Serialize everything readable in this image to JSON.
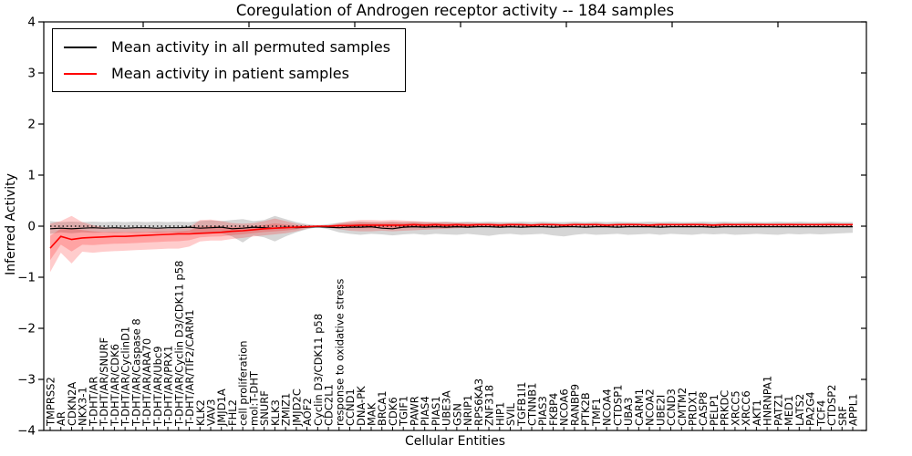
{
  "figure": {
    "title": "Coregulation of Androgen receptor activity -- 184 samples",
    "xlabel": "Cellular Entities",
    "ylabel": "Inferred Activity",
    "legend": [
      {
        "label": "Mean activity in all permuted samples",
        "color": "#000000"
      },
      {
        "label": "Mean activity in patient samples",
        "color": "#ff0000"
      }
    ]
  },
  "chart_data": {
    "type": "line",
    "title": "Coregulation of Androgen receptor activity -- 184 samples",
    "xlabel": "Cellular Entities",
    "ylabel": "Inferred Activity",
    "ylim": [
      -4,
      4
    ],
    "y_tick_values": [
      4,
      3,
      2,
      1,
      0,
      -1,
      -2,
      -3,
      -4
    ],
    "y_tick_labels": [
      "4",
      "3",
      "2",
      "1",
      "0",
      "−1",
      "−2",
      "−3",
      "−4"
    ],
    "grid": false,
    "zero_line": true,
    "legend_position": "upper left",
    "categories": [
      "TMPRSS2",
      "AR",
      "CDKN2A",
      "NKX3-1",
      "T-DHT/AR",
      "T-DHT/AR/SNURF",
      "T-DHT/AR/CDK6",
      "T-DHT/AR/CyclinD1",
      "T-DHT/AR/Caspase 8",
      "T-DHT/AR/ARA70",
      "T-DHT/AR/Ubc9",
      "T-DHT/AR/PRX1",
      "T-DHT/AR/Cyclin D3/CDK11 p58",
      "T-DHT/AR/TIF2/CARM1",
      "KLK2",
      "VAV3",
      "JMJD1A",
      "FHL2",
      "cell proliferation",
      "mol:T-DHT",
      "SNURF",
      "KLK3",
      "ZMIZ1",
      "JMJD2C",
      "AOF2",
      "Cyclin D3/CDK11 p58",
      "CDC2L1",
      "response to oxidative stress",
      "CCND1",
      "DNA-PK",
      "MAK",
      "BRCA1",
      "CDK6",
      "TGIF1",
      "PAWR",
      "PIAS4",
      "PIAS1",
      "UBE3A",
      "GSN",
      "NRIP1",
      "RPS6KA3",
      "ZNF318",
      "HIP1",
      "SVIL",
      "TGFB1I1",
      "CTNNB1",
      "PIAS3",
      "FKBP4",
      "NCOA6",
      "RANBP9",
      "PTK2B",
      "TMF1",
      "NCOA4",
      "CTDSP1",
      "UBA3",
      "CARM1",
      "NCOA2",
      "UBE2I",
      "CCND3",
      "CMTM2",
      "PRDX1",
      "CASP8",
      "PELP1",
      "PRKDC",
      "XRCC5",
      "XRCC6",
      "AKT1",
      "HNRNPA1",
      "PATZ1",
      "MED1",
      "LATS2",
      "PA2G4",
      "TCF4",
      "CTDSP2",
      "SRF",
      "APPL1"
    ],
    "series": [
      {
        "name": "Mean activity in all permuted samples",
        "color": "#000000",
        "values": [
          -0.05,
          -0.04,
          -0.05,
          -0.04,
          -0.03,
          -0.04,
          -0.03,
          -0.04,
          -0.03,
          -0.03,
          -0.04,
          -0.03,
          -0.03,
          -0.02,
          -0.04,
          -0.03,
          -0.02,
          -0.05,
          -0.04,
          -0.02,
          -0.03,
          -0.04,
          -0.02,
          -0.03,
          -0.02,
          -0.01,
          -0.02,
          -0.03,
          -0.02,
          -0.02,
          -0.01,
          -0.04,
          -0.05,
          -0.02,
          -0.01,
          -0.02,
          -0.01,
          -0.02,
          -0.01,
          -0.02,
          -0.01,
          -0.01,
          -0.02,
          -0.01,
          -0.02,
          -0.01,
          -0.01,
          -0.02,
          -0.01,
          -0.01,
          -0.02,
          -0.01,
          -0.01,
          -0.02,
          -0.01,
          -0.01,
          -0.01,
          -0.02,
          -0.01,
          -0.01,
          -0.01,
          -0.01,
          -0.02,
          -0.01,
          -0.01,
          -0.01,
          -0.01,
          -0.01,
          -0.01,
          -0.01,
          -0.01,
          -0.01,
          -0.01,
          -0.01,
          -0.01,
          -0.01
        ],
        "band_upper": [
          0.1,
          0.08,
          0.09,
          0.08,
          0.09,
          0.08,
          0.09,
          0.08,
          0.09,
          0.08,
          0.09,
          0.08,
          0.09,
          0.08,
          0.1,
          0.11,
          0.1,
          0.12,
          0.14,
          0.1,
          0.12,
          0.2,
          0.14,
          0.08,
          0.04,
          0.02,
          0.04,
          0.07,
          0.08,
          0.09,
          0.08,
          0.08,
          0.09,
          0.08,
          0.09,
          0.08,
          0.08,
          0.09,
          0.08,
          0.09,
          0.08,
          0.09,
          0.08,
          0.08,
          0.09,
          0.08,
          0.09,
          0.08,
          0.08,
          0.09,
          0.08,
          0.09,
          0.08,
          0.09,
          0.08,
          0.08,
          0.09,
          0.08,
          0.09,
          0.08,
          0.08,
          0.09,
          0.08,
          0.09,
          0.08,
          0.09,
          0.08,
          0.08,
          0.09,
          0.08,
          0.09,
          0.08,
          0.08,
          0.09,
          0.08,
          0.08
        ],
        "band_lower": [
          -0.15,
          -0.12,
          -0.14,
          -0.12,
          -0.13,
          -0.12,
          -0.13,
          -0.12,
          -0.13,
          -0.12,
          -0.13,
          -0.12,
          -0.13,
          -0.12,
          -0.14,
          -0.13,
          -0.14,
          -0.2,
          -0.32,
          -0.18,
          -0.22,
          -0.3,
          -0.2,
          -0.12,
          -0.06,
          -0.02,
          -0.06,
          -0.12,
          -0.15,
          -0.17,
          -0.15,
          -0.16,
          -0.18,
          -0.16,
          -0.15,
          -0.17,
          -0.15,
          -0.16,
          -0.17,
          -0.15,
          -0.17,
          -0.19,
          -0.16,
          -0.15,
          -0.17,
          -0.16,
          -0.15,
          -0.18,
          -0.2,
          -0.17,
          -0.15,
          -0.17,
          -0.16,
          -0.15,
          -0.17,
          -0.16,
          -0.15,
          -0.17,
          -0.15,
          -0.16,
          -0.17,
          -0.15,
          -0.16,
          -0.15,
          -0.17,
          -0.16,
          -0.15,
          -0.16,
          -0.17,
          -0.15,
          -0.16,
          -0.15,
          -0.16,
          -0.15,
          -0.14,
          -0.13
        ]
      },
      {
        "name": "Mean activity in patient samples",
        "color": "#ff0000",
        "values": [
          -0.43,
          -0.2,
          -0.26,
          -0.23,
          -0.22,
          -0.21,
          -0.2,
          -0.2,
          -0.19,
          -0.18,
          -0.17,
          -0.16,
          -0.15,
          -0.15,
          -0.14,
          -0.13,
          -0.12,
          -0.1,
          -0.09,
          -0.07,
          -0.05,
          -0.04,
          -0.03,
          -0.02,
          -0.01,
          0.0,
          0.0,
          0.01,
          0.01,
          0.02,
          0.02,
          0.02,
          0.02,
          0.02,
          0.03,
          0.02,
          0.03,
          0.02,
          0.03,
          0.02,
          0.03,
          0.03,
          0.02,
          0.03,
          0.03,
          0.02,
          0.03,
          0.03,
          0.02,
          0.03,
          0.03,
          0.03,
          0.02,
          0.03,
          0.03,
          0.03,
          0.02,
          0.03,
          0.03,
          0.03,
          0.03,
          0.03,
          0.02,
          0.03,
          0.03,
          0.03,
          0.03,
          0.03,
          0.03,
          0.03,
          0.03,
          0.03,
          0.03,
          0.03,
          0.03,
          0.03
        ],
        "band_upper": [
          0.05,
          0.1,
          0.2,
          0.08,
          0.02,
          -0.02,
          -0.03,
          -0.03,
          -0.04,
          -0.04,
          -0.04,
          -0.05,
          -0.05,
          -0.02,
          0.12,
          0.13,
          0.1,
          0.06,
          0.05,
          0.06,
          0.1,
          0.15,
          0.1,
          0.05,
          0.02,
          0.01,
          0.02,
          0.06,
          0.1,
          0.12,
          0.12,
          0.11,
          0.12,
          0.11,
          0.1,
          0.09,
          0.08,
          0.08,
          0.07,
          0.07,
          0.06,
          0.06,
          0.06,
          0.06,
          0.05,
          0.05,
          0.06,
          0.05,
          0.05,
          0.06,
          0.05,
          0.06,
          0.05,
          0.05,
          0.06,
          0.05,
          0.05,
          0.06,
          0.05,
          0.05,
          0.06,
          0.05,
          0.05,
          0.06,
          0.05,
          0.05,
          0.06,
          0.05,
          0.05,
          0.06,
          0.05,
          0.05,
          0.05,
          0.06,
          0.05,
          0.05
        ],
        "band_lower": [
          -0.9,
          -0.52,
          -0.73,
          -0.5,
          -0.52,
          -0.5,
          -0.49,
          -0.48,
          -0.47,
          -0.46,
          -0.45,
          -0.44,
          -0.44,
          -0.4,
          -0.3,
          -0.28,
          -0.28,
          -0.25,
          -0.23,
          -0.2,
          -0.18,
          -0.16,
          -0.14,
          -0.1,
          -0.05,
          -0.01,
          -0.03,
          -0.06,
          -0.09,
          -0.1,
          -0.1,
          -0.09,
          -0.1,
          -0.09,
          -0.08,
          -0.07,
          -0.06,
          -0.05,
          -0.04,
          -0.03,
          -0.02,
          -0.01,
          -0.01,
          0.0,
          0.0,
          0.0,
          0.01,
          0.01,
          0.0,
          0.01,
          0.01,
          0.01,
          0.0,
          0.01,
          0.01,
          0.01,
          0.0,
          0.01,
          0.01,
          0.01,
          0.01,
          0.01,
          0.0,
          0.01,
          0.01,
          0.01,
          0.01,
          0.01,
          0.01,
          0.01,
          0.01,
          0.01,
          0.01,
          0.01,
          0.01,
          0.01
        ]
      }
    ]
  }
}
